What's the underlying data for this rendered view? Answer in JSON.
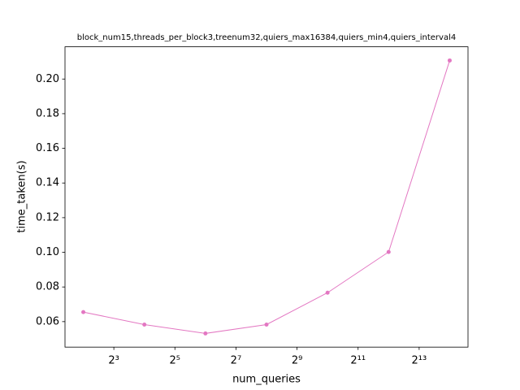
{
  "chart_data": {
    "type": "line",
    "title": "block_num15,threads_per_block3,treenum32,quiers_max16384,quiers_min4,quiers_interval4",
    "x_label": "num_queries",
    "y_label": "time_taken(s)",
    "x": [
      4,
      16,
      64,
      256,
      1024,
      4096,
      16384
    ],
    "series": [
      {
        "name": "time_taken",
        "color": "#e377c2",
        "values": [
          0.0655,
          0.0583,
          0.0532,
          0.0583,
          0.0767,
          0.1002,
          0.2107
        ]
      }
    ],
    "x_scale": "log2",
    "xlim": [
      2.639,
      24833
    ],
    "xticks": [
      {
        "value": 8,
        "label": "2³"
      },
      {
        "value": 32,
        "label": "2⁵"
      },
      {
        "value": 128,
        "label": "2⁷"
      },
      {
        "value": 512,
        "label": "2⁹"
      },
      {
        "value": 2048,
        "label": "2¹¹"
      },
      {
        "value": 8192,
        "label": "2¹³"
      }
    ],
    "ylim": [
      0.0453,
      0.2186
    ],
    "yticks": [
      0.06,
      0.08,
      {
        "value": 0.1,
        "label": "0.10"
      },
      0.12,
      0.14,
      0.16,
      0.18,
      {
        "value": 0.2,
        "label": "0.20"
      }
    ],
    "grid": false
  }
}
